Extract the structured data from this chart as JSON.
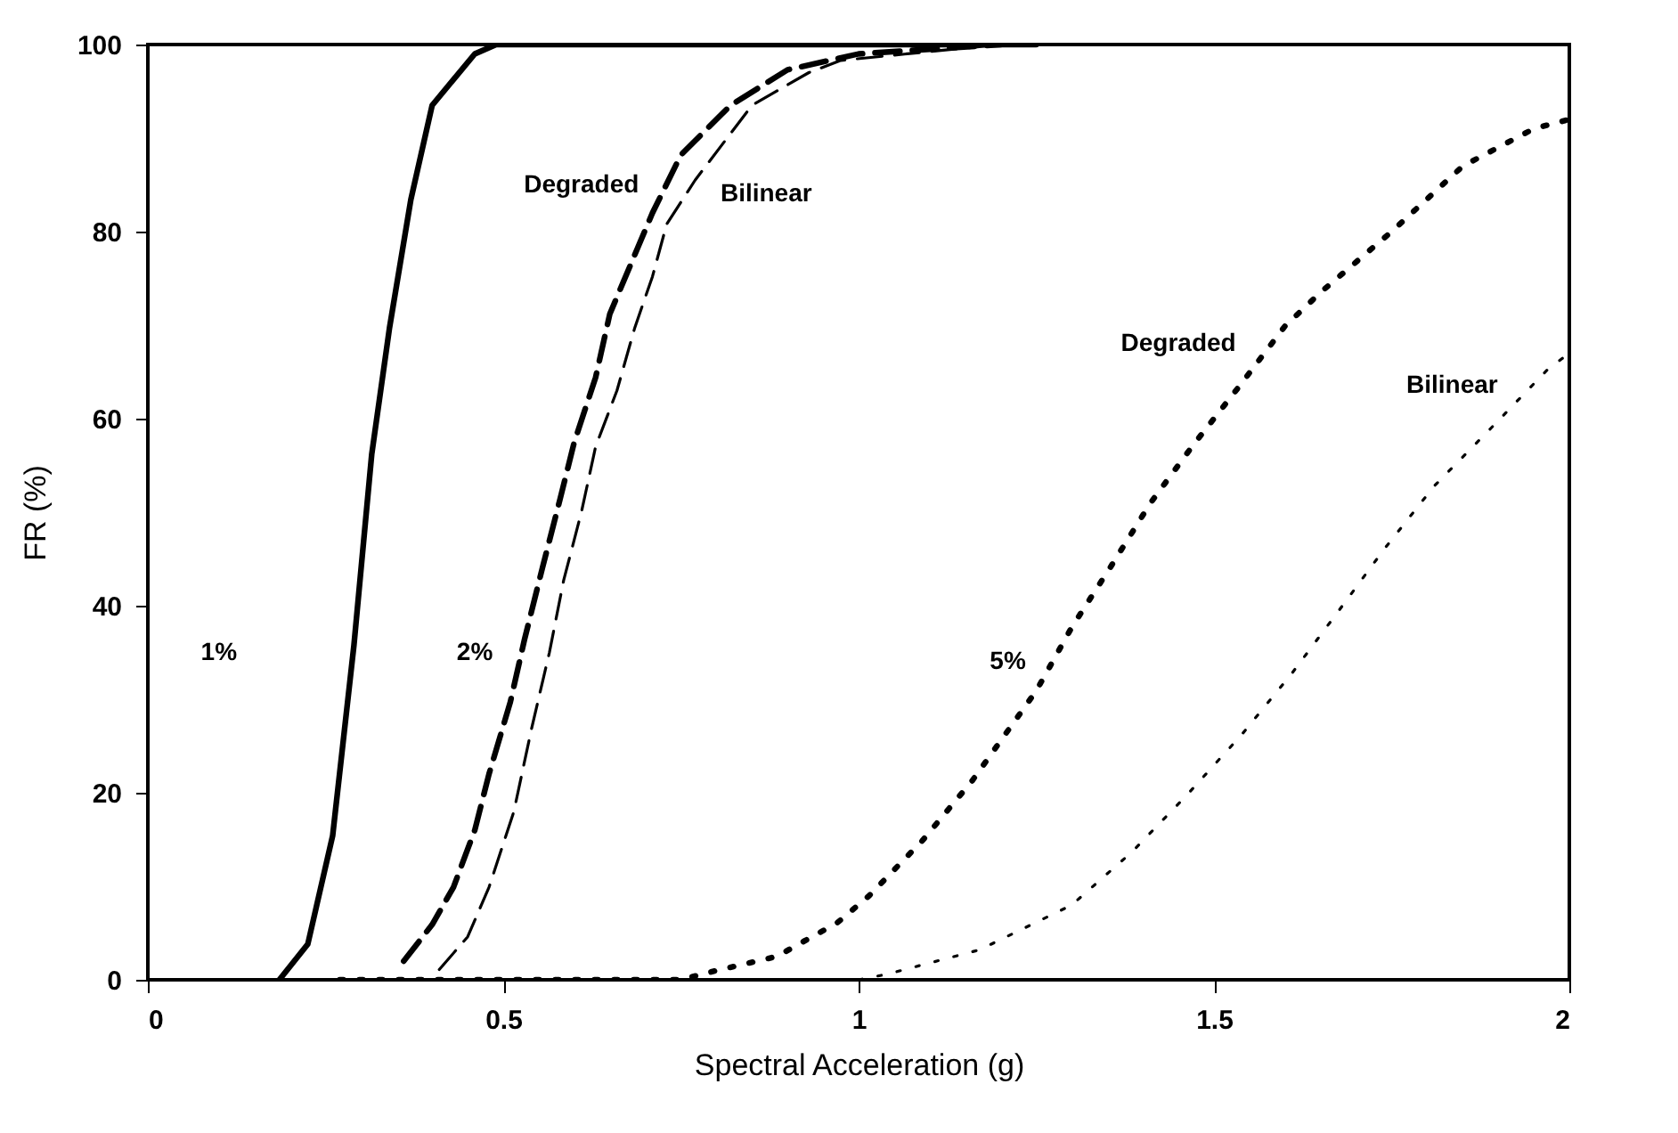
{
  "chart_data": {
    "type": "line",
    "xlabel": "Spectral Acceleration (g)",
    "ylabel": "FR (%)",
    "xlim": [
      0,
      2
    ],
    "ylim": [
      0,
      100
    ],
    "xticks": [
      0,
      0.5,
      1,
      1.5,
      2
    ],
    "yticks": [
      0,
      20,
      40,
      60,
      80,
      100
    ],
    "grid": false,
    "marker": "none",
    "series": [
      {
        "color": "#000000",
        "line_style": "solid",
        "x": [
          0.185,
          0.225,
          0.26,
          0.29,
          0.315,
          0.34,
          0.37,
          0.4,
          0.46,
          0.49,
          0.7,
          1.0,
          1.25
        ],
        "values": [
          0,
          3.8,
          15.4,
          35.8,
          56.2,
          69.7,
          83.4,
          93.5,
          99,
          100,
          100,
          100,
          100
        ]
      },
      {
        "color": "#000000",
        "line_style": "dashed",
        "x": [
          0.36,
          0.4,
          0.43,
          0.46,
          0.48,
          0.51,
          0.53,
          0.555,
          0.58,
          0.6,
          0.63,
          0.65,
          0.68,
          0.71,
          0.75,
          0.82,
          0.9,
          1.0,
          1.2
        ],
        "values": [
          2,
          5.9,
          9.9,
          16,
          22,
          29.7,
          36.4,
          44,
          51.4,
          57.5,
          64.4,
          71.2,
          76.6,
          82,
          88.2,
          93.5,
          97.3,
          99,
          100
        ]
      },
      {
        "color": "#000000",
        "line_style": "dashed",
        "x": [
          0.41,
          0.45,
          0.48,
          0.515,
          0.54,
          0.565,
          0.585,
          0.61,
          0.63,
          0.66,
          0.685,
          0.71,
          0.73,
          0.77,
          0.85,
          0.93,
          0.975,
          1.2
        ],
        "values": [
          1.1,
          4.6,
          9.9,
          18,
          26.9,
          35,
          42.7,
          50,
          57,
          63,
          69.7,
          75.2,
          80.8,
          85.5,
          93.5,
          97,
          98.3,
          100
        ]
      },
      {
        "color": "#000000",
        "line_style": "dotted",
        "x": [
          0.27,
          0.5,
          0.75,
          0.79,
          0.885,
          0.925,
          0.97,
          1.015,
          1.09,
          1.16,
          1.25,
          1.3,
          1.355,
          1.41,
          1.47,
          1.535,
          1.6,
          1.65,
          1.75,
          1.85,
          1.95,
          2.0
        ],
        "values": [
          0,
          0,
          0,
          0.8,
          2.5,
          4.2,
          6.1,
          9,
          14.9,
          21.3,
          30.9,
          37.7,
          44.2,
          50.9,
          57.1,
          63.4,
          69.9,
          73.5,
          80,
          87,
          91,
          92
        ]
      },
      {
        "color": "#000000",
        "line_style": "dotted",
        "x": [
          1.0,
          1.04,
          1.17,
          1.3,
          1.385,
          1.46,
          1.54,
          1.61,
          1.675,
          1.74,
          1.81,
          1.89,
          1.97,
          2.0
        ],
        "values": [
          0,
          0.6,
          3.2,
          8,
          13.7,
          19.6,
          26.3,
          32.8,
          39.4,
          46.1,
          52.8,
          59,
          65.3,
          67
        ]
      }
    ],
    "annotations": [
      "1%",
      "2%",
      "5%",
      "Degraded",
      "Bilinear",
      "Degraded",
      "Bilinear"
    ]
  }
}
